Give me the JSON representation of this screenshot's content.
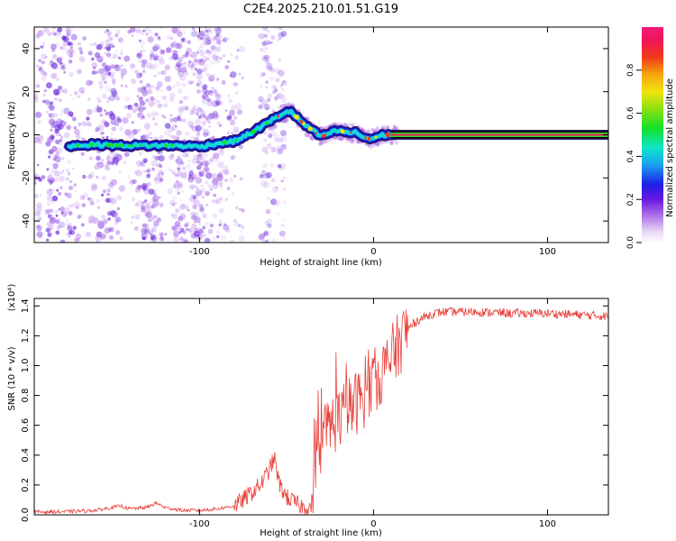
{
  "title": "C2E4.2025.210.01.51.G19",
  "chart_data": [
    {
      "type": "heatmap",
      "xlabel": "Height of straight line (km)",
      "ylabel": "Frequency (Hz)",
      "xlim": [
        -195,
        135
      ],
      "ylim": [
        -50,
        50
      ],
      "x_ticks": [
        -100,
        0,
        100
      ],
      "y_ticks": [
        -40,
        -20,
        0,
        20,
        40
      ],
      "colorbar": {
        "label": "Normalized spectral amplitude",
        "range": [
          0,
          1
        ],
        "ticks": [
          0.0,
          0.2,
          0.4,
          0.6,
          0.8
        ]
      },
      "ridge": {
        "x": [
          -175,
          -160,
          -145,
          -130,
          -115,
          -100,
          -90,
          -80,
          -70,
          -62,
          -56,
          -52,
          -48,
          -44,
          -40,
          -35,
          -30,
          -25,
          -20,
          -15,
          -10,
          -6,
          -2,
          2,
          6,
          10,
          20,
          60,
          100,
          135
        ],
        "y": [
          -5,
          -4.5,
          -5,
          -5,
          -5,
          -5.5,
          -4,
          -3,
          1,
          5,
          8,
          10,
          11,
          8,
          5,
          2,
          -1,
          1,
          2,
          1,
          1,
          -1,
          -2,
          -1,
          0,
          0,
          0,
          0,
          0,
          0
        ]
      }
    },
    {
      "type": "line",
      "xlabel": "Height of straight line (km)",
      "ylabel": "SNR (10 * v/v)",
      "y_scale_label": "(x10⁴)",
      "xlim": [
        -195,
        135
      ],
      "ylim": [
        0,
        1.45
      ],
      "x_ticks": [
        -100,
        0,
        100
      ],
      "y_ticks": [
        0.0,
        0.2,
        0.4,
        0.6,
        0.8,
        1.0,
        1.2,
        1.4
      ],
      "color": "#e8403a",
      "series": [
        {
          "x": [
            -195,
            -180,
            -160,
            -150,
            -145,
            -140,
            -130,
            -125,
            -120,
            -110,
            -100,
            -90,
            -80,
            -75,
            -70,
            -65,
            -60,
            -57,
            -54,
            -50,
            -45,
            -40,
            -36,
            -33,
            -30,
            -25,
            -20,
            -15,
            -10,
            -5,
            0,
            5,
            10,
            15,
            20,
            25,
            30,
            35,
            40,
            60,
            80,
            100,
            120,
            135
          ],
          "y": [
            0.02,
            0.02,
            0.03,
            0.05,
            0.06,
            0.04,
            0.05,
            0.08,
            0.05,
            0.03,
            0.03,
            0.04,
            0.06,
            0.1,
            0.15,
            0.2,
            0.3,
            0.38,
            0.2,
            0.12,
            0.08,
            0.05,
            0.05,
            0.25,
            0.5,
            0.6,
            0.65,
            0.7,
            0.75,
            0.8,
            0.9,
            0.95,
            1.05,
            1.15,
            1.25,
            1.3,
            1.33,
            1.35,
            1.36,
            1.36,
            1.35,
            1.35,
            1.34,
            1.33
          ]
        }
      ]
    }
  ]
}
